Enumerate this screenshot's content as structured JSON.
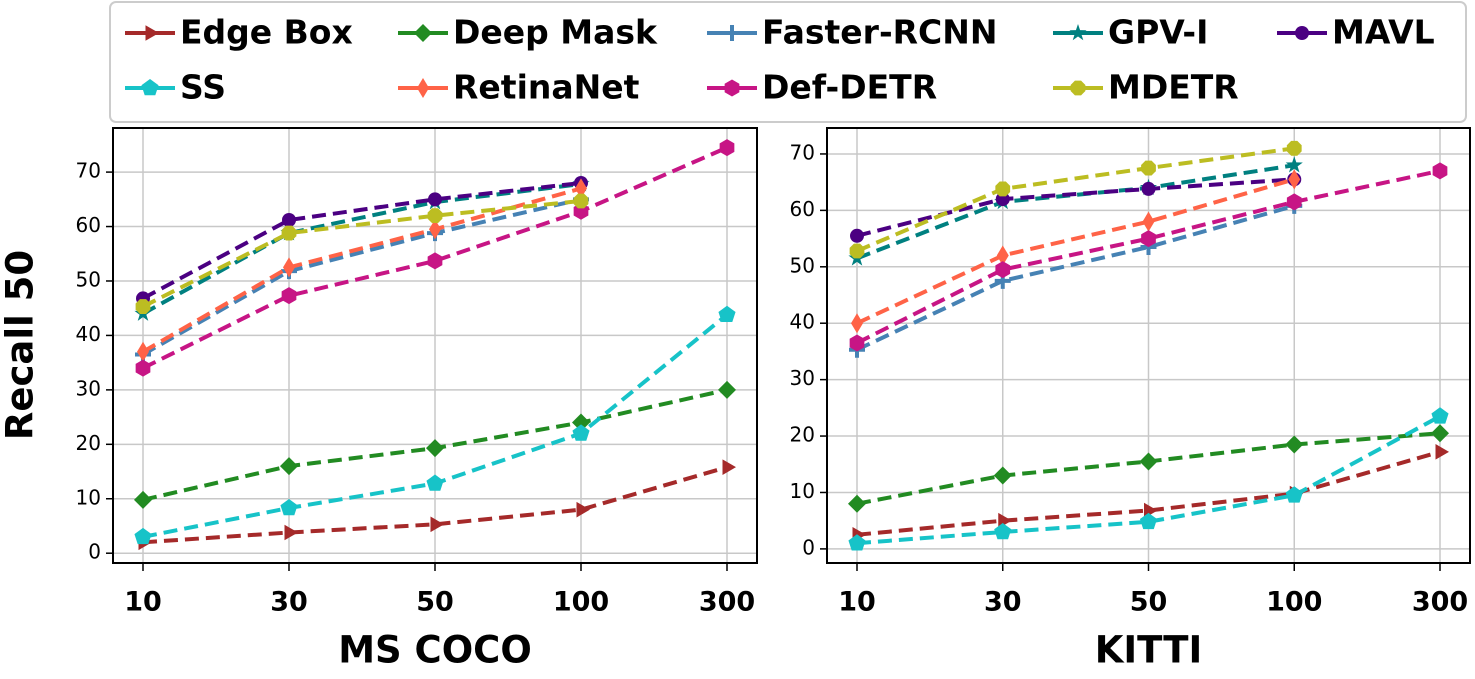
{
  "y_label": "Recall 50",
  "chart_data": [
    {
      "type": "line",
      "x_label": "MS COCO",
      "categories": [
        "10",
        "30",
        "50",
        "100",
        "300"
      ],
      "ylim": [
        -1.8,
        78.1
      ],
      "yticks": [
        0,
        10,
        20,
        30,
        40,
        50,
        60,
        70
      ],
      "grid": true,
      "series": [
        {
          "name": "Edge Box",
          "color": "#a52a2a",
          "marker": "triangle-right",
          "values": [
            2,
            3.8,
            5.3,
            8,
            15.8
          ]
        },
        {
          "name": "Deep Mask",
          "color": "#228b22",
          "marker": "diamond",
          "values": [
            9.8,
            16,
            19.3,
            24,
            30
          ]
        },
        {
          "name": "Faster-RCNN",
          "color": "#4682b4",
          "marker": "plus",
          "values": [
            36.5,
            51.8,
            58.8,
            65,
            null
          ]
        },
        {
          "name": "GPV-I",
          "color": "#008080",
          "marker": "star",
          "values": [
            44,
            58.8,
            64.5,
            67.8,
            null
          ]
        },
        {
          "name": "MAVL",
          "color": "#4b0082",
          "marker": "circle",
          "values": [
            46.8,
            61.2,
            65,
            68,
            null
          ]
        },
        {
          "name": "SS",
          "color": "#17c3c8",
          "marker": "pentagon",
          "values": [
            3,
            8.3,
            12.8,
            22,
            43.8
          ]
        },
        {
          "name": "RetinaNet",
          "color": "#ff6347",
          "marker": "thin-diamond",
          "values": [
            37,
            52.5,
            59.5,
            67,
            null
          ]
        },
        {
          "name": "Def-DETR",
          "color": "#c71585",
          "marker": "hexagon",
          "values": [
            34,
            47.3,
            53.7,
            62.8,
            74.5
          ]
        },
        {
          "name": "MDETR",
          "color": "#bcbd22",
          "marker": "octagon",
          "values": [
            45.3,
            58.8,
            62,
            64.7,
            null
          ]
        }
      ]
    },
    {
      "type": "line",
      "x_label": "KITTI",
      "categories": [
        "10",
        "30",
        "50",
        "100",
        "300"
      ],
      "ylim": [
        -2.5,
        74.6
      ],
      "yticks": [
        0,
        10,
        20,
        30,
        40,
        50,
        60,
        70
      ],
      "grid": true,
      "series": [
        {
          "color": "#a52a2a",
          "marker": "triangle-right",
          "values": [
            2.5,
            5,
            6.8,
            9.8,
            17.2
          ]
        },
        {
          "color": "#228b22",
          "marker": "diamond",
          "values": [
            8,
            13,
            15.5,
            18.5,
            20.5
          ]
        },
        {
          "color": "#4682b4",
          "marker": "plus",
          "values": [
            35.3,
            47.5,
            53.5,
            60.8,
            null
          ]
        },
        {
          "color": "#008080",
          "marker": "star",
          "values": [
            51.5,
            61.5,
            64,
            68,
            null
          ]
        },
        {
          "color": "#4b0082",
          "marker": "circle",
          "values": [
            55.5,
            62,
            63.8,
            65.5,
            null
          ]
        },
        {
          "color": "#17c3c8",
          "marker": "pentagon",
          "values": [
            1,
            3,
            4.8,
            9.5,
            23.5
          ]
        },
        {
          "color": "#ff6347",
          "marker": "thin-diamond",
          "values": [
            40,
            52,
            58,
            65.5,
            null
          ]
        },
        {
          "color": "#c71585",
          "marker": "hexagon",
          "values": [
            36.5,
            49.5,
            55,
            61.5,
            67
          ]
        },
        {
          "color": "#bcbd22",
          "marker": "octagon",
          "values": [
            52.8,
            63.8,
            67.5,
            71,
            null
          ]
        }
      ]
    }
  ]
}
